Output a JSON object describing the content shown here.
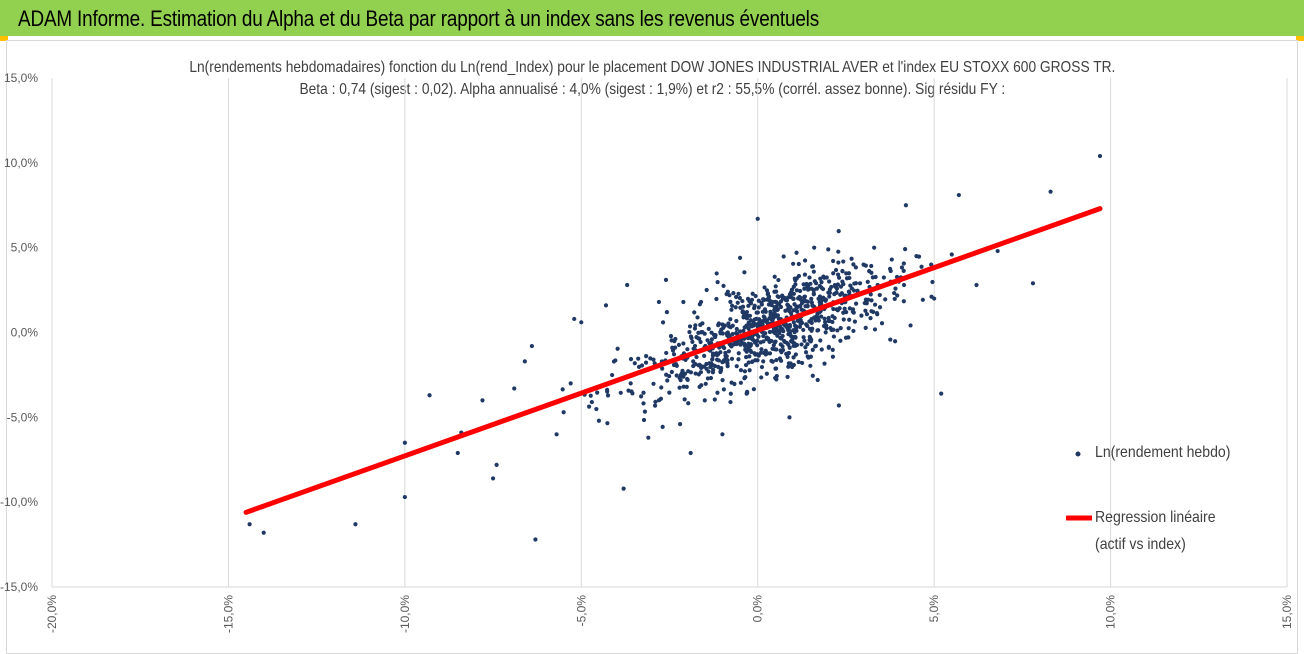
{
  "header": {
    "title": "ADAM Informe. Estimation du Alpha et du Beta par rapport à un index sans les revenus éventuels",
    "background": "#92d050"
  },
  "chart_data": {
    "type": "scatter",
    "title": "Ln(rendements hebdomadaires) fonction du Ln(rend_Index) pour le placement DOW JONES INDUSTRIAL AVER et l'index EU STOXX 600 GROSS TR.",
    "subtitle": "Beta : 0,74 (sigest : 0,02).  Alpha annualisé : 4,0% (sigest : 1,9%) et r2 : 55,5% (corrél. assez bonne). Sig résidu FY :",
    "xlabel": "",
    "ylabel": "",
    "xlim": [
      -0.2,
      0.15
    ],
    "ylim": [
      -0.15,
      0.15
    ],
    "x_ticks": [
      "-20,0%",
      "-15,0%",
      "-10,0%",
      "-5,0%",
      "0,0%",
      "5,0%",
      "10,0%",
      "15,0%"
    ],
    "y_ticks": [
      "15,0%",
      "10,0%",
      "5,0%",
      "0,0%",
      "-5,0%",
      "-10,0%",
      "-15,0%"
    ],
    "grid": "vertical",
    "legend": {
      "position": "right",
      "entries": [
        "Ln(rendement hebdo)",
        "Regression linéaire",
        "(actif vs index)"
      ]
    },
    "series": [
      {
        "name": "Ln(rendement hebdo)",
        "kind": "points",
        "color": "#1f3864",
        "points": [
          [
            0.097,
            0.104
          ],
          [
            0.083,
            0.083
          ],
          [
            0.057,
            0.081
          ],
          [
            0.042,
            0.075
          ],
          [
            0.0,
            0.067
          ],
          [
            0.078,
            0.029
          ],
          [
            0.062,
            0.028
          ],
          [
            0.05,
            0.02
          ],
          [
            0.068,
            0.048
          ],
          [
            0.055,
            0.046
          ],
          [
            0.04,
            0.03
          ],
          [
            0.033,
            0.05
          ],
          [
            0.029,
            0.029
          ],
          [
            0.024,
            0.03
          ],
          [
            0.052,
            -0.036
          ],
          [
            -0.144,
            -0.113
          ],
          [
            -0.14,
            -0.118
          ],
          [
            -0.114,
            -0.113
          ],
          [
            -0.1,
            -0.097
          ],
          [
            -0.1,
            -0.065
          ],
          [
            -0.093,
            -0.037
          ],
          [
            -0.085,
            -0.071
          ],
          [
            -0.084,
            -0.059
          ],
          [
            -0.075,
            -0.086
          ],
          [
            -0.074,
            -0.078
          ],
          [
            -0.066,
            -0.017
          ],
          [
            -0.064,
            -0.008
          ],
          [
            -0.063,
            -0.122
          ],
          [
            -0.06,
            -0.043
          ],
          [
            -0.057,
            -0.06
          ],
          [
            -0.053,
            -0.03
          ],
          [
            -0.052,
            0.008
          ],
          [
            -0.05,
            0.006
          ],
          [
            -0.045,
            -0.052
          ],
          [
            -0.043,
            0.016
          ],
          [
            -0.038,
            -0.092
          ],
          [
            -0.037,
            0.028
          ],
          [
            -0.031,
            -0.062
          ],
          [
            -0.028,
            0.018
          ],
          [
            -0.026,
            0.031
          ],
          [
            -0.022,
            -0.054
          ],
          [
            -0.019,
            -0.071
          ],
          [
            -0.015,
            -0.04
          ],
          [
            -0.01,
            -0.06
          ],
          [
            -0.008,
            0.022
          ],
          [
            -0.005,
            0.044
          ],
          [
            0.009,
            -0.05
          ],
          [
            0.017,
            -0.028
          ],
          [
            0.023,
            -0.043
          ],
          [
            0.03,
            0.04
          ],
          [
            0.038,
            0.043
          ],
          [
            0.011,
            0.047
          ],
          [
            0.016,
            0.05
          ],
          [
            0.02,
            0.049
          ],
          [
            0.045,
            0.045
          ],
          [
            -0.078,
            -0.04
          ],
          [
            -0.069,
            -0.033
          ],
          [
            -0.055,
            -0.047
          ],
          [
            -0.047,
            -0.041
          ],
          [
            -0.036,
            -0.03
          ]
        ],
        "cloud": {
          "count": 900,
          "slope": 0.74,
          "intercept": 0.0008,
          "x_center": 0.003,
          "x_spread": 0.022,
          "residual_spread": 0.014
        }
      },
      {
        "name": "Regression linéaire (actif vs index)",
        "kind": "line",
        "color": "#ff0000",
        "x": [
          -0.145,
          0.097
        ],
        "y": [
          -0.106,
          0.073
        ]
      }
    ]
  }
}
